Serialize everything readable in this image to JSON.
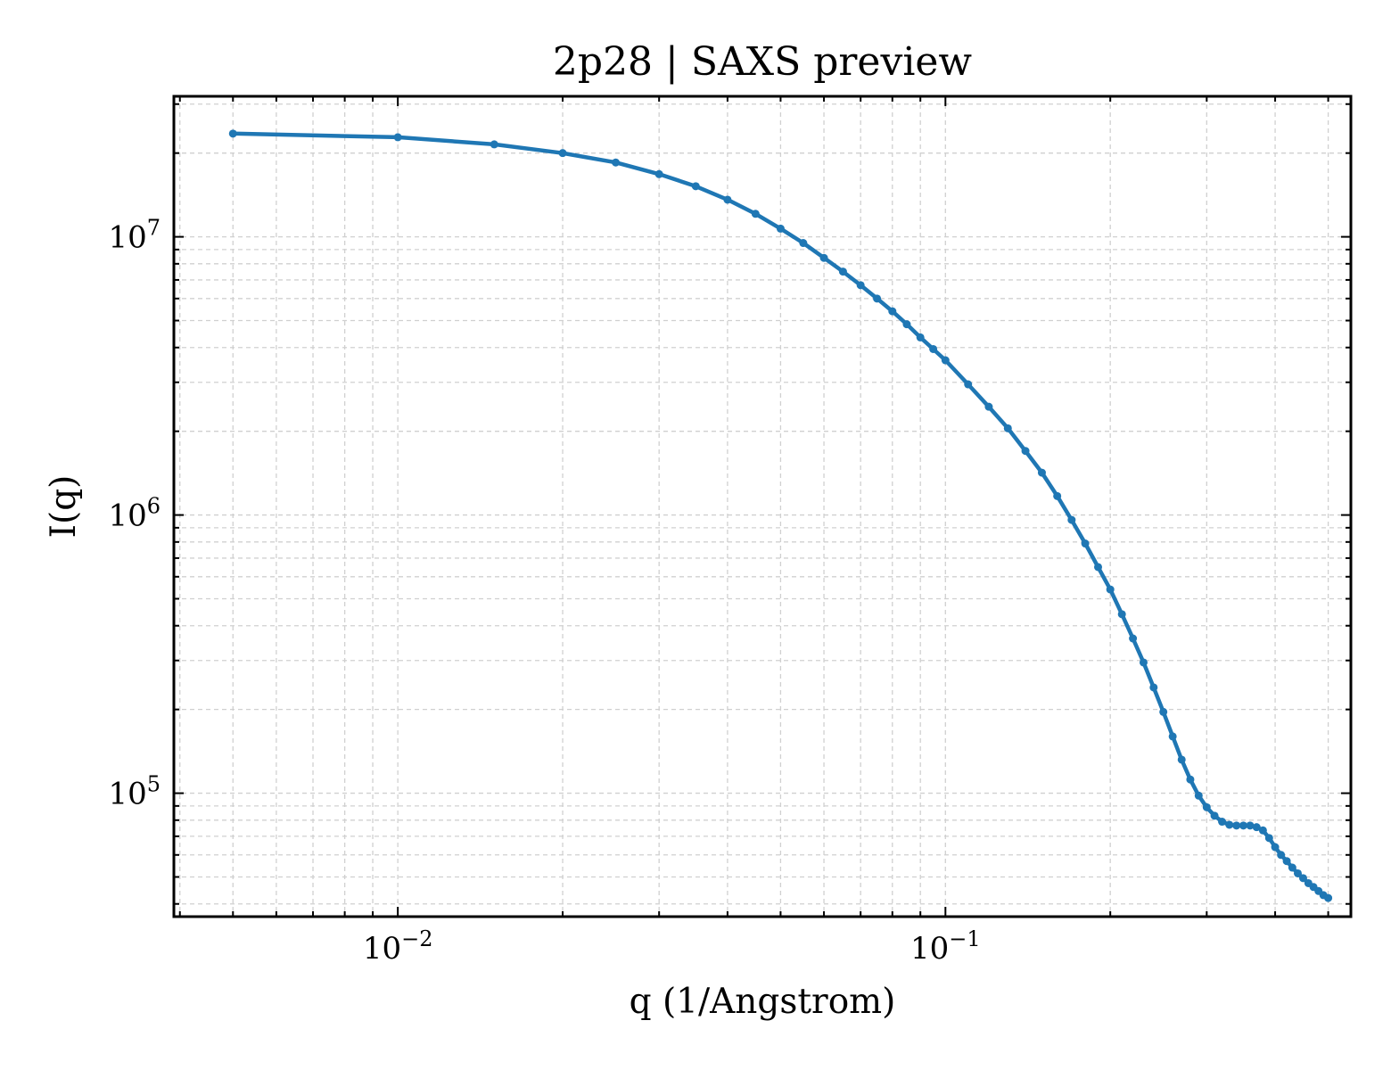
{
  "chart_data": {
    "type": "line",
    "title": "2p28 | SAXS preview",
    "xlabel": "q (1/Angstrom)",
    "ylabel": "I(q)",
    "xscale": "log",
    "yscale": "log",
    "xlim": [
      0.0039,
      0.55
    ],
    "ylim": [
      36000,
      32000000
    ],
    "grid": true,
    "marker": "dot",
    "x_ticks": [
      {
        "base": "10",
        "exp": "−2",
        "value": 0.01
      },
      {
        "base": "10",
        "exp": "−1",
        "value": 0.1
      }
    ],
    "y_ticks": [
      {
        "base": "10",
        "exp": "5",
        "value": 100000
      },
      {
        "base": "10",
        "exp": "6",
        "value": 1000000
      },
      {
        "base": "10",
        "exp": "7",
        "value": 10000000
      }
    ],
    "series": [
      {
        "color": "#1f77b4",
        "x": [
          0.005,
          0.01,
          0.015,
          0.02,
          0.025,
          0.03,
          0.035,
          0.04,
          0.045,
          0.05,
          0.055,
          0.06,
          0.065,
          0.07,
          0.075,
          0.08,
          0.085,
          0.09,
          0.095,
          0.1,
          0.11,
          0.12,
          0.13,
          0.14,
          0.15,
          0.16,
          0.17,
          0.18,
          0.19,
          0.2,
          0.21,
          0.22,
          0.23,
          0.24,
          0.25,
          0.26,
          0.27,
          0.28,
          0.29,
          0.3,
          0.31,
          0.32,
          0.33,
          0.34,
          0.35,
          0.36,
          0.37,
          0.38,
          0.39,
          0.4,
          0.41,
          0.42,
          0.43,
          0.44,
          0.45,
          0.46,
          0.47,
          0.48,
          0.49,
          0.5
        ],
        "y": [
          23500000,
          22800000,
          21500000,
          20000000,
          18500000,
          16800000,
          15200000,
          13600000,
          12100000,
          10700000,
          9500000,
          8400000,
          7500000,
          6700000,
          6000000,
          5400000,
          4850000,
          4350000,
          3950000,
          3600000,
          2950000,
          2450000,
          2050000,
          1700000,
          1420000,
          1170000,
          960000,
          790000,
          650000,
          540000,
          440000,
          360000,
          295000,
          240000,
          196000,
          160000,
          132000,
          112000,
          98000,
          89000,
          83000,
          79000,
          77000,
          76500,
          76500,
          76500,
          75500,
          73500,
          69000,
          64000,
          60000,
          57000,
          54000,
          51500,
          49500,
          47500,
          46000,
          44500,
          43000,
          42000
        ]
      }
    ]
  }
}
